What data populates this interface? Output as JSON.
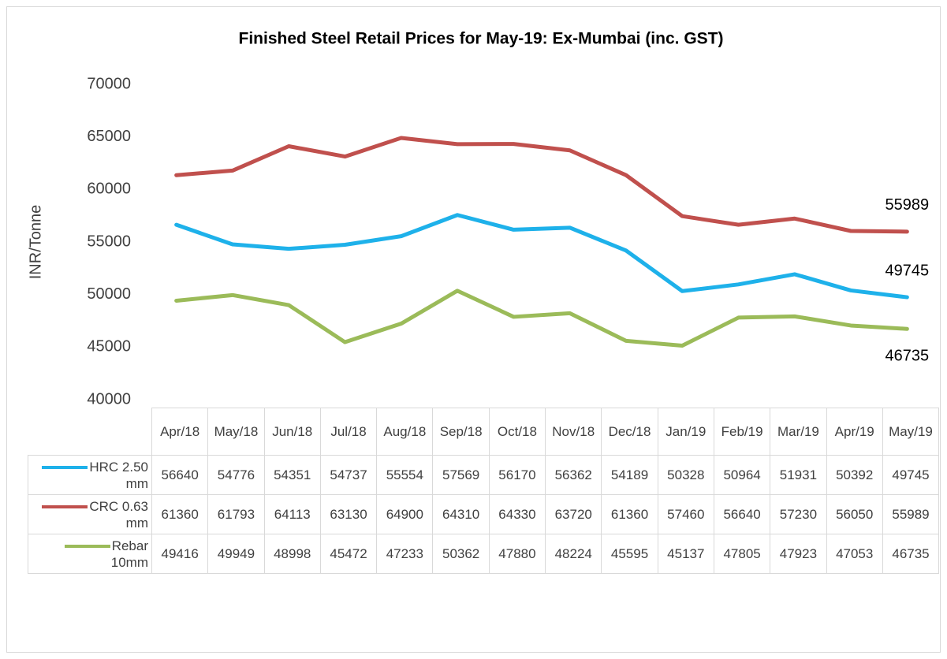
{
  "chart_data": {
    "type": "line",
    "title": "Finished Steel Retail Prices for May-19: Ex-Mumbai (inc. GST)",
    "y_label": "INR/Tonne",
    "categories": [
      "Apr/18",
      "May/18",
      "Jun/18",
      "Jul/18",
      "Aug/18",
      "Sep/18",
      "Oct/18",
      "Nov/18",
      "Dec/18",
      "Jan/19",
      "Feb/19",
      "Mar/19",
      "Apr/19",
      "May/19"
    ],
    "series": [
      {
        "name": "HRC 2.50 mm",
        "color": "#1eb1ea",
        "values": [
          56640,
          54776,
          54351,
          54737,
          55554,
          57569,
          56170,
          56362,
          54189,
          50328,
          50964,
          51931,
          50392,
          49745
        ]
      },
      {
        "name": "CRC 0.63 mm",
        "color": "#c0504d",
        "values": [
          61360,
          61793,
          64113,
          63130,
          64900,
          64310,
          64330,
          63720,
          61360,
          57460,
          56640,
          57230,
          56050,
          55989
        ]
      },
      {
        "name": "Rebar 10mm",
        "color": "#9bbb59",
        "values": [
          49416,
          49949,
          48998,
          45472,
          47233,
          50362,
          47880,
          48224,
          45595,
          45137,
          47805,
          47923,
          47053,
          46735
        ]
      }
    ],
    "ylim": [
      40000,
      70000
    ],
    "yticks": [
      40000,
      45000,
      50000,
      55000,
      60000,
      65000,
      70000
    ],
    "grid": false,
    "data_table": true
  }
}
